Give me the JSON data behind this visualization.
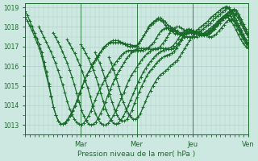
{
  "title": "Pression niveau de la mer( hPa )",
  "xlim": [
    0,
    96
  ],
  "ylim": [
    1012.5,
    1019.2
  ],
  "yticks": [
    1013,
    1014,
    1015,
    1016,
    1017,
    1018,
    1019
  ],
  "xtick_positions": [
    24,
    48,
    72,
    96
  ],
  "xtick_labels": [
    "Mar",
    "Mer",
    "Jeu",
    "Ven"
  ],
  "background_color": "#cce8e0",
  "grid_color": "#a8ccc4",
  "line_color": "#1a6b2a",
  "marker": "+",
  "markersize": 3,
  "linewidth": 0.9,
  "series": [
    {
      "x_start": 0,
      "y_values": [
        1018.8,
        1018.6,
        1018.3,
        1018.0,
        1017.7,
        1017.4,
        1017.1,
        1016.7,
        1016.2,
        1015.7,
        1015.1,
        1014.5,
        1013.9,
        1013.5,
        1013.2,
        1013.05,
        1013.05,
        1013.1,
        1013.25,
        1013.45,
        1013.7,
        1013.95,
        1014.25,
        1014.6,
        1014.95,
        1015.25,
        1015.55,
        1015.75,
        1016.0,
        1016.2,
        1016.4,
        1016.6,
        1016.75,
        1016.9,
        1017.05,
        1017.15,
        1017.2,
        1017.2,
        1017.2,
        1017.2,
        1017.2,
        1017.15,
        1017.1,
        1017.05,
        1017.0,
        1017.0,
        1017.0,
        1017.0,
        1017.15,
        1017.35,
        1017.55,
        1017.75,
        1017.95,
        1018.1,
        1018.2,
        1018.3,
        1018.4,
        1018.35,
        1018.25,
        1018.1,
        1017.95,
        1017.8,
        1017.75,
        1017.65,
        1017.7,
        1017.65,
        1017.65,
        1017.65,
        1017.65,
        1017.7,
        1017.7,
        1017.75,
        1017.8,
        1017.9,
        1018.0,
        1018.1,
        1018.2,
        1018.3,
        1018.45,
        1018.55,
        1018.65,
        1018.75,
        1018.85,
        1018.95,
        1019.0,
        1019.05,
        1018.9,
        1018.7,
        1018.45,
        1018.2,
        1017.9,
        1017.65,
        1017.45,
        1017.25,
        1017.1
      ]
    },
    {
      "x_start": 0,
      "y_values": [
        1018.5,
        1018.3,
        1018.05,
        1017.8,
        1017.5,
        1017.2,
        1016.9,
        1016.5,
        1016.0,
        1015.5,
        1015.0,
        1014.45,
        1013.9,
        1013.5,
        1013.2,
        1013.05,
        1013.05,
        1013.15,
        1013.3,
        1013.5,
        1013.75,
        1014.0,
        1014.3,
        1014.65,
        1014.95,
        1015.25,
        1015.55,
        1015.75,
        1015.95,
        1016.15,
        1016.35,
        1016.55,
        1016.75,
        1016.95,
        1017.05,
        1017.15,
        1017.25,
        1017.3,
        1017.3,
        1017.3,
        1017.25,
        1017.2,
        1017.15,
        1017.1,
        1017.1,
        1017.05,
        1017.05,
        1017.05,
        1017.2,
        1017.35,
        1017.55,
        1017.75,
        1018.0,
        1018.15,
        1018.25,
        1018.35,
        1018.45,
        1018.45,
        1018.35,
        1018.25,
        1018.1,
        1018.0,
        1017.95,
        1017.85,
        1017.8,
        1017.7,
        1017.7,
        1017.7,
        1017.7,
        1017.7,
        1017.7,
        1017.7,
        1017.7,
        1017.7,
        1017.8,
        1017.9,
        1018.0,
        1018.1,
        1018.2,
        1018.35,
        1018.45,
        1018.55,
        1018.65,
        1018.75,
        1018.85,
        1018.95,
        1019.0,
        1018.8,
        1018.6,
        1018.35,
        1018.1,
        1017.85,
        1017.6,
        1017.35,
        1017.15
      ]
    },
    {
      "x_start": 6,
      "y_values": [
        1018.0,
        1017.75,
        1017.5,
        1017.25,
        1017.0,
        1016.75,
        1016.45,
        1016.15,
        1015.8,
        1015.45,
        1015.05,
        1014.65,
        1014.2,
        1013.85,
        1013.55,
        1013.3,
        1013.15,
        1013.05,
        1013.0,
        1013.1,
        1013.25,
        1013.45,
        1013.7,
        1014.0,
        1014.3,
        1014.6,
        1014.85,
        1015.1,
        1015.3,
        1015.5,
        1015.7,
        1015.9,
        1016.1,
        1016.25,
        1016.4,
        1016.55,
        1016.65,
        1016.75,
        1016.8,
        1016.8,
        1016.8,
        1016.8,
        1016.8,
        1016.8,
        1016.8,
        1016.85,
        1016.9,
        1017.0,
        1017.1,
        1017.25,
        1017.45,
        1017.65,
        1017.8,
        1017.9,
        1017.95,
        1017.95,
        1017.9,
        1017.8,
        1017.75,
        1017.65,
        1017.6,
        1017.55,
        1017.5,
        1017.5,
        1017.5,
        1017.5,
        1017.5,
        1017.5,
        1017.55,
        1017.6,
        1017.65,
        1017.75,
        1017.85,
        1017.95,
        1018.05,
        1018.15,
        1018.3,
        1018.4,
        1018.5,
        1018.6,
        1018.7,
        1018.8,
        1018.85,
        1018.85,
        1018.7,
        1018.5,
        1018.25,
        1018.0,
        1017.75,
        1017.5
      ]
    },
    {
      "x_start": 12,
      "y_values": [
        1017.7,
        1017.5,
        1017.25,
        1017.0,
        1016.75,
        1016.45,
        1016.15,
        1015.8,
        1015.45,
        1015.05,
        1014.6,
        1014.15,
        1013.75,
        1013.45,
        1013.2,
        1013.05,
        1013.0,
        1013.05,
        1013.15,
        1013.35,
        1013.6,
        1013.85,
        1014.15,
        1014.5,
        1014.8,
        1015.1,
        1015.35,
        1015.6,
        1015.8,
        1016.0,
        1016.2,
        1016.4,
        1016.55,
        1016.7,
        1016.8,
        1016.85,
        1016.9,
        1016.9,
        1016.9,
        1016.9,
        1016.9,
        1016.85,
        1016.85,
        1016.85,
        1016.9,
        1017.0,
        1017.15,
        1017.3,
        1017.5,
        1017.7,
        1017.85,
        1017.95,
        1018.0,
        1018.0,
        1017.95,
        1017.85,
        1017.8,
        1017.75,
        1017.7,
        1017.65,
        1017.65,
        1017.65,
        1017.65,
        1017.65,
        1017.7,
        1017.75,
        1017.85,
        1017.95,
        1018.1,
        1018.2,
        1018.35,
        1018.45,
        1018.55,
        1018.65,
        1018.75,
        1018.85,
        1018.9,
        1018.85,
        1018.65,
        1018.4,
        1018.15,
        1017.9,
        1017.65
      ]
    },
    {
      "x_start": 18,
      "y_values": [
        1017.35,
        1017.15,
        1016.9,
        1016.65,
        1016.35,
        1016.05,
        1015.7,
        1015.3,
        1014.9,
        1014.45,
        1013.95,
        1013.6,
        1013.3,
        1013.1,
        1013.0,
        1013.0,
        1013.1,
        1013.25,
        1013.5,
        1013.75,
        1014.05,
        1014.35,
        1014.65,
        1015.0,
        1015.3,
        1015.55,
        1015.75,
        1015.95,
        1016.15,
        1016.35,
        1016.5,
        1016.65,
        1016.75,
        1016.85,
        1016.9,
        1016.9,
        1016.9,
        1016.9,
        1016.9,
        1016.9,
        1016.95,
        1017.05,
        1017.2,
        1017.4,
        1017.6,
        1017.75,
        1017.85,
        1017.9,
        1017.85,
        1017.75,
        1017.7,
        1017.65,
        1017.65,
        1017.65,
        1017.65,
        1017.7,
        1017.8,
        1017.9,
        1018.05,
        1018.2,
        1018.35,
        1018.45,
        1018.55,
        1018.65,
        1018.7,
        1018.65,
        1018.45,
        1018.2,
        1017.95,
        1017.7,
        1017.5
      ]
    },
    {
      "x_start": 24,
      "y_values": [
        1017.1,
        1016.9,
        1016.65,
        1016.4,
        1016.1,
        1015.8,
        1015.45,
        1015.05,
        1014.6,
        1014.2,
        1013.8,
        1013.5,
        1013.25,
        1013.1,
        1013.05,
        1013.1,
        1013.25,
        1013.45,
        1013.7,
        1014.0,
        1014.3,
        1014.6,
        1014.9,
        1015.2,
        1015.45,
        1015.7,
        1015.9,
        1016.1,
        1016.25,
        1016.4,
        1016.55,
        1016.65,
        1016.75,
        1016.8,
        1016.85,
        1016.85,
        1016.85,
        1016.9,
        1017.0,
        1017.15,
        1017.35,
        1017.55,
        1017.7,
        1017.8,
        1017.85,
        1017.8,
        1017.7,
        1017.65,
        1017.6,
        1017.6,
        1017.65,
        1017.7,
        1017.8,
        1017.95,
        1018.1,
        1018.2,
        1018.35,
        1018.45,
        1018.55,
        1018.6,
        1018.55,
        1018.35,
        1018.1,
        1017.85,
        1017.6,
        1017.35,
        1017.15,
        1017.0
      ]
    },
    {
      "x_start": 30,
      "y_values": [
        1016.7,
        1016.45,
        1016.15,
        1015.8,
        1015.4,
        1015.0,
        1014.55,
        1014.15,
        1013.8,
        1013.5,
        1013.3,
        1013.2,
        1013.2,
        1013.3,
        1013.5,
        1013.75,
        1014.1,
        1014.4,
        1014.7,
        1015.0,
        1015.25,
        1015.5,
        1015.7,
        1015.85,
        1016.0,
        1016.15,
        1016.3,
        1016.4,
        1016.5,
        1016.55,
        1016.6,
        1016.65,
        1016.75,
        1016.9,
        1017.1,
        1017.3,
        1017.5,
        1017.65,
        1017.75,
        1017.8,
        1017.75,
        1017.65,
        1017.6,
        1017.55,
        1017.55,
        1017.6,
        1017.65,
        1017.75,
        1017.9,
        1018.05,
        1018.2,
        1018.35,
        1018.45,
        1018.5,
        1018.45,
        1018.3,
        1018.1,
        1017.85,
        1017.6,
        1017.35,
        1017.15,
        1017.0,
        1016.9
      ]
    },
    {
      "x_start": 36,
      "y_values": [
        1016.45,
        1016.15,
        1015.8,
        1015.4,
        1015.0,
        1014.55,
        1014.15,
        1013.85,
        1013.6,
        1013.4,
        1013.3,
        1013.3,
        1013.4,
        1013.6,
        1013.9,
        1014.2,
        1014.5,
        1014.75,
        1015.0,
        1015.2,
        1015.4,
        1015.55,
        1015.65,
        1015.75,
        1015.85,
        1016.0,
        1016.1,
        1016.2,
        1016.3,
        1016.5,
        1016.7,
        1016.9,
        1017.1,
        1017.3,
        1017.5,
        1017.65,
        1017.75,
        1017.75,
        1017.7,
        1017.6,
        1017.55,
        1017.5,
        1017.5,
        1017.55,
        1017.65,
        1017.8,
        1017.95,
        1018.1,
        1018.25,
        1018.35,
        1018.4,
        1018.35,
        1018.2,
        1018.0,
        1017.75,
        1017.5,
        1017.3,
        1017.1
      ]
    }
  ]
}
